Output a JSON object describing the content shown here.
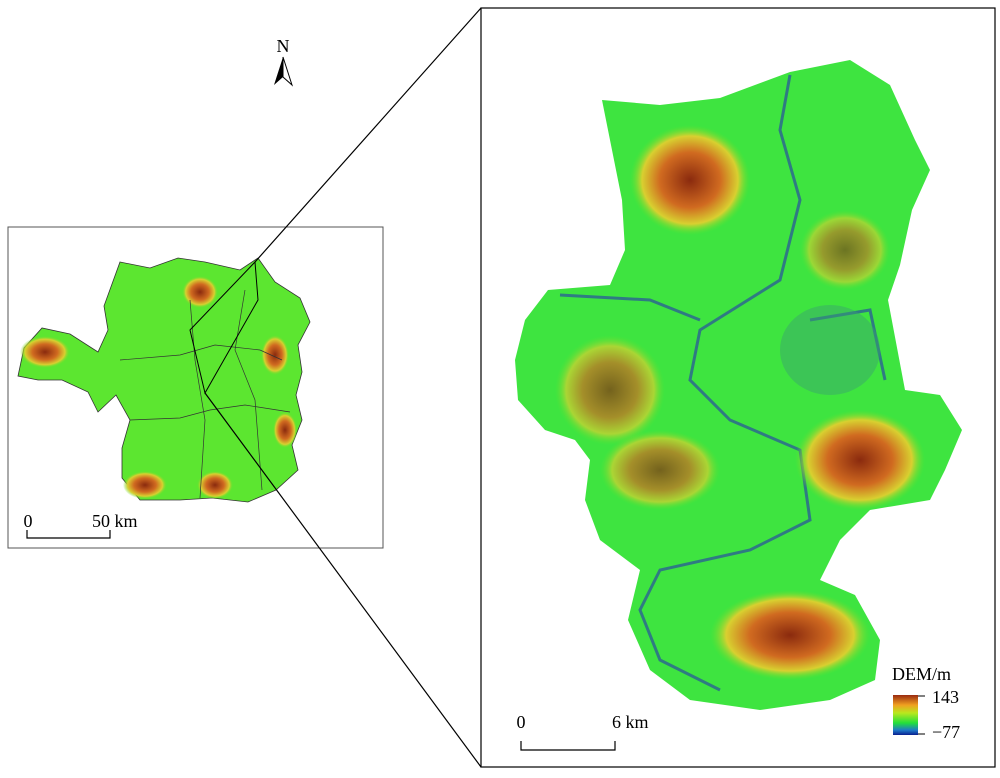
{
  "north_arrow": {
    "label": "N"
  },
  "overview_map": {
    "scale_bar": {
      "start": "0",
      "end": "50 km"
    }
  },
  "detail_map": {
    "scale_bar": {
      "start": "0",
      "end": "6 km"
    },
    "legend": {
      "title": "DEM/m",
      "max": "143",
      "min": "−77"
    }
  }
}
